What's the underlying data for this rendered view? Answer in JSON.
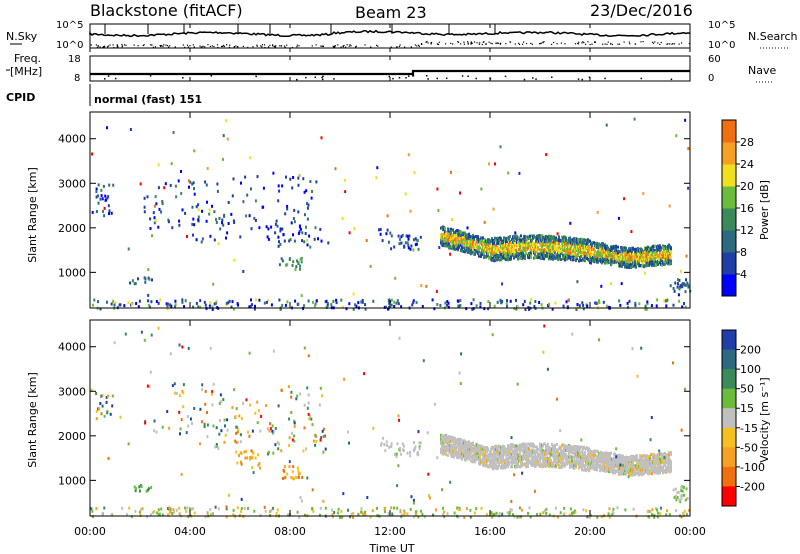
{
  "header": {
    "station": "Blackstone (fitACF)",
    "beam": "Beam 23",
    "date": "23/Dec/2016"
  },
  "panels": {
    "noise": {
      "left_label": "N.Sky",
      "right_label": "N.Search",
      "left_ticks": [
        "10^5",
        "10^0"
      ],
      "right_ticks": [
        "10^5",
        "10^0"
      ]
    },
    "freq": {
      "left_label_1": "Freq.",
      "left_label_2": "[MHz]",
      "left_ticks": [
        "18",
        "8"
      ],
      "right_label": "Nave",
      "right_ticks": [
        "60",
        "0"
      ]
    },
    "cpid": {
      "label": "CPID",
      "value": "normal (fast) 151"
    }
  },
  "colors": {
    "power_scale": [
      "#0000ff",
      "#1f3ea8",
      "#2e6a7f",
      "#3a8a5a",
      "#6cbc3c",
      "#f0e020",
      "#f5a020",
      "#f07010",
      "#ff0000"
    ],
    "velocity_scale": [
      "#1f3ea8",
      "#2e6a7f",
      "#3a8a5a",
      "#6cbc3c",
      "#c0c0c0",
      "#f5c020",
      "#f5a020",
      "#f07010",
      "#ff0000"
    ]
  },
  "chart_data": [
    {
      "type": "heatmap",
      "name": "power",
      "ylabel": "Slant Range [km]",
      "yticks": [
        1000,
        2000,
        3000,
        4000
      ],
      "ylim": [
        200,
        4600
      ],
      "xlim": [
        0,
        24
      ],
      "colorbar": {
        "label": "Power [dB]",
        "ticks": [
          "4",
          "8",
          "12",
          "16",
          "20",
          "24",
          "28"
        ]
      }
    },
    {
      "type": "heatmap",
      "name": "velocity",
      "ylabel": "Slant Range [km]",
      "yticks": [
        1000,
        2000,
        3000,
        4000
      ],
      "ylim": [
        200,
        4600
      ],
      "xlim": [
        0,
        24
      ],
      "xlabel": "Time UT",
      "xticks": [
        "00:00",
        "04:00",
        "08:00",
        "12:00",
        "16:00",
        "20:00",
        "00:00"
      ],
      "colorbar": {
        "label": "Velocity [m s⁻¹]",
        "ticks": [
          "200",
          "100",
          "50",
          "15",
          "-15",
          "-50",
          "-100",
          "-200"
        ]
      }
    }
  ]
}
